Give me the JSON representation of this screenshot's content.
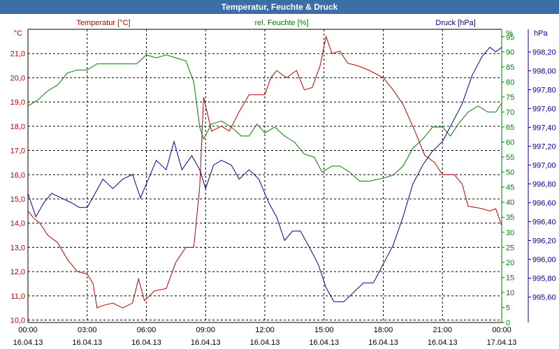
{
  "window": {
    "title": "Temperatur, Feuchte & Druck"
  },
  "colors": {
    "temperature": "#c00000",
    "humidity": "#008000",
    "pressure": "#000099",
    "title_bar": "#3a6ea5"
  },
  "chart_data": {
    "type": "line",
    "title": "Temperatur, Feuchte & Druck",
    "x": {
      "range_hours": [
        0,
        24
      ],
      "ticks": [
        {
          "h": 0,
          "time": "00:00",
          "date": "16.04.13"
        },
        {
          "h": 3,
          "time": "03:00",
          "date": "16.04.13"
        },
        {
          "h": 6,
          "time": "06:00",
          "date": "16.04.13"
        },
        {
          "h": 9,
          "time": "09:00",
          "date": "16.04.13"
        },
        {
          "h": 12,
          "time": "12:00",
          "date": "16.04.13"
        },
        {
          "h": 15,
          "time": "15:00",
          "date": "16.04.13"
        },
        {
          "h": 18,
          "time": "18:00",
          "date": "16.04.13"
        },
        {
          "h": 21,
          "time": "21:00",
          "date": "16.04.13"
        },
        {
          "h": 24,
          "time": "00:00",
          "date": "17.04.13"
        }
      ]
    },
    "axes": {
      "temperature": {
        "unit": "°C",
        "label": "Temperatur [°C]",
        "ylim": [
          9.9,
          22.0
        ],
        "ticks": [
          "10,0",
          "11,0",
          "12,0",
          "13,0",
          "14,0",
          "15,0",
          "16,0",
          "17,0",
          "18,0",
          "19,0",
          "20,0",
          "21,0"
        ]
      },
      "humidity": {
        "unit": "%",
        "label": "rel. Feuchte [%]",
        "ylim": [
          0,
          97.5
        ],
        "ticks": [
          "0",
          "5",
          "10",
          "15",
          "20",
          "25",
          "30",
          "35",
          "40",
          "45",
          "50",
          "55",
          "60",
          "65",
          "70",
          "75",
          "80",
          "85",
          "90",
          "95"
        ]
      },
      "pressure": {
        "unit": "hPa",
        "label": "Druck [hPa]",
        "ylim": [
          995.33,
          998.44
        ],
        "ticks": [
          "995,60",
          "995,80",
          "996,00",
          "996,20",
          "996,40",
          "996,60",
          "996,80",
          "997,00",
          "997,20",
          "997,40",
          "997,60",
          "997,80",
          "998,00",
          "998,20"
        ]
      }
    },
    "grid": true,
    "series": [
      {
        "name": "Temperatur [°C]",
        "axis": "temperature",
        "points": [
          [
            0,
            14.5
          ],
          [
            0.3,
            14.2
          ],
          [
            0.6,
            14.0
          ],
          [
            1.0,
            13.5
          ],
          [
            1.5,
            13.2
          ],
          [
            2.0,
            12.5
          ],
          [
            2.5,
            12.0
          ],
          [
            3.0,
            11.9
          ],
          [
            3.3,
            11.5
          ],
          [
            3.5,
            10.5
          ],
          [
            3.8,
            10.6
          ],
          [
            4.3,
            10.7
          ],
          [
            4.8,
            10.5
          ],
          [
            5.3,
            10.7
          ],
          [
            5.6,
            11.7
          ],
          [
            5.9,
            10.8
          ],
          [
            6.4,
            11.2
          ],
          [
            7.0,
            11.3
          ],
          [
            7.5,
            12.4
          ],
          [
            8.0,
            13.0
          ],
          [
            8.4,
            13.0
          ],
          [
            8.7,
            15.5
          ],
          [
            8.9,
            19.2
          ],
          [
            9.3,
            17.8
          ],
          [
            9.8,
            18.0
          ],
          [
            10.2,
            17.8
          ],
          [
            10.7,
            18.6
          ],
          [
            11.2,
            19.3
          ],
          [
            12.0,
            19.3
          ],
          [
            12.3,
            20.0
          ],
          [
            12.6,
            20.3
          ],
          [
            13.1,
            20.0
          ],
          [
            13.6,
            20.3
          ],
          [
            14.0,
            19.5
          ],
          [
            14.4,
            19.6
          ],
          [
            14.8,
            20.5
          ],
          [
            15.1,
            21.7
          ],
          [
            15.4,
            21.0
          ],
          [
            15.8,
            21.1
          ],
          [
            16.2,
            20.6
          ],
          [
            16.7,
            20.5
          ],
          [
            17.3,
            20.3
          ],
          [
            18.0,
            20.0
          ],
          [
            18.5,
            19.5
          ],
          [
            19.0,
            18.9
          ],
          [
            19.6,
            17.8
          ],
          [
            20.1,
            16.8
          ],
          [
            20.6,
            16.5
          ],
          [
            21.0,
            16.0
          ],
          [
            21.6,
            16.0
          ],
          [
            22.0,
            15.6
          ],
          [
            22.3,
            14.7
          ],
          [
            23.0,
            14.6
          ],
          [
            23.4,
            14.5
          ],
          [
            23.7,
            14.6
          ],
          [
            24.0,
            13.9
          ]
        ]
      },
      {
        "name": "rel. Feuchte [%]",
        "axis": "humidity",
        "points": [
          [
            0,
            72
          ],
          [
            0.5,
            74
          ],
          [
            1.0,
            77
          ],
          [
            1.5,
            79
          ],
          [
            2.0,
            83
          ],
          [
            2.5,
            84
          ],
          [
            3.0,
            84
          ],
          [
            3.5,
            86
          ],
          [
            4.0,
            86
          ],
          [
            4.5,
            86
          ],
          [
            5.0,
            86
          ],
          [
            5.5,
            86
          ],
          [
            6.0,
            89
          ],
          [
            6.5,
            88
          ],
          [
            7.0,
            89
          ],
          [
            7.5,
            88
          ],
          [
            8.0,
            87
          ],
          [
            8.4,
            80
          ],
          [
            8.7,
            65
          ],
          [
            8.9,
            61
          ],
          [
            9.3,
            66
          ],
          [
            9.8,
            67
          ],
          [
            10.3,
            65
          ],
          [
            10.8,
            62
          ],
          [
            11.2,
            62
          ],
          [
            11.6,
            66
          ],
          [
            12.0,
            63
          ],
          [
            12.5,
            65
          ],
          [
            13.0,
            62
          ],
          [
            13.5,
            60
          ],
          [
            14.0,
            56
          ],
          [
            14.5,
            55
          ],
          [
            14.9,
            50
          ],
          [
            15.4,
            52
          ],
          [
            15.8,
            52
          ],
          [
            16.3,
            50
          ],
          [
            16.8,
            47
          ],
          [
            17.3,
            47
          ],
          [
            18.0,
            48
          ],
          [
            18.5,
            49
          ],
          [
            19.0,
            52
          ],
          [
            19.5,
            58
          ],
          [
            20.0,
            61
          ],
          [
            20.5,
            65
          ],
          [
            21.0,
            65
          ],
          [
            21.4,
            62
          ],
          [
            21.8,
            66
          ],
          [
            22.3,
            70
          ],
          [
            22.8,
            72
          ],
          [
            23.3,
            70
          ],
          [
            23.7,
            70
          ],
          [
            24.0,
            73
          ]
        ]
      },
      {
        "name": "Druck [hPa]",
        "axis": "pressure",
        "points": [
          [
            0,
            996.7
          ],
          [
            0.4,
            996.45
          ],
          [
            0.8,
            996.6
          ],
          [
            1.2,
            996.7
          ],
          [
            1.7,
            996.65
          ],
          [
            2.2,
            996.6
          ],
          [
            2.6,
            996.55
          ],
          [
            3.0,
            996.55
          ],
          [
            3.4,
            996.7
          ],
          [
            3.8,
            996.85
          ],
          [
            4.3,
            996.75
          ],
          [
            4.8,
            996.85
          ],
          [
            5.3,
            996.9
          ],
          [
            5.7,
            996.65
          ],
          [
            6.1,
            996.85
          ],
          [
            6.5,
            997.05
          ],
          [
            7.0,
            996.95
          ],
          [
            7.4,
            997.25
          ],
          [
            7.8,
            996.95
          ],
          [
            8.3,
            997.1
          ],
          [
            8.7,
            996.95
          ],
          [
            9.0,
            996.75
          ],
          [
            9.4,
            997.0
          ],
          [
            9.8,
            997.05
          ],
          [
            10.3,
            997.0
          ],
          [
            10.7,
            996.85
          ],
          [
            11.2,
            996.95
          ],
          [
            11.7,
            996.85
          ],
          [
            12.2,
            996.6
          ],
          [
            12.6,
            996.45
          ],
          [
            13.0,
            996.2
          ],
          [
            13.4,
            996.3
          ],
          [
            13.8,
            996.3
          ],
          [
            14.2,
            996.15
          ],
          [
            14.7,
            995.95
          ],
          [
            15.1,
            995.7
          ],
          [
            15.5,
            995.55
          ],
          [
            16.0,
            995.55
          ],
          [
            16.5,
            995.65
          ],
          [
            17.0,
            995.75
          ],
          [
            17.5,
            995.75
          ],
          [
            18.0,
            995.95
          ],
          [
            18.5,
            996.15
          ],
          [
            19.0,
            996.45
          ],
          [
            19.5,
            996.8
          ],
          [
            20.0,
            997.0
          ],
          [
            20.5,
            997.15
          ],
          [
            21.0,
            997.25
          ],
          [
            21.5,
            997.45
          ],
          [
            22.0,
            997.65
          ],
          [
            22.5,
            997.95
          ],
          [
            23.0,
            998.15
          ],
          [
            23.4,
            998.25
          ],
          [
            23.7,
            998.2
          ],
          [
            24.0,
            998.25
          ]
        ]
      }
    ]
  }
}
